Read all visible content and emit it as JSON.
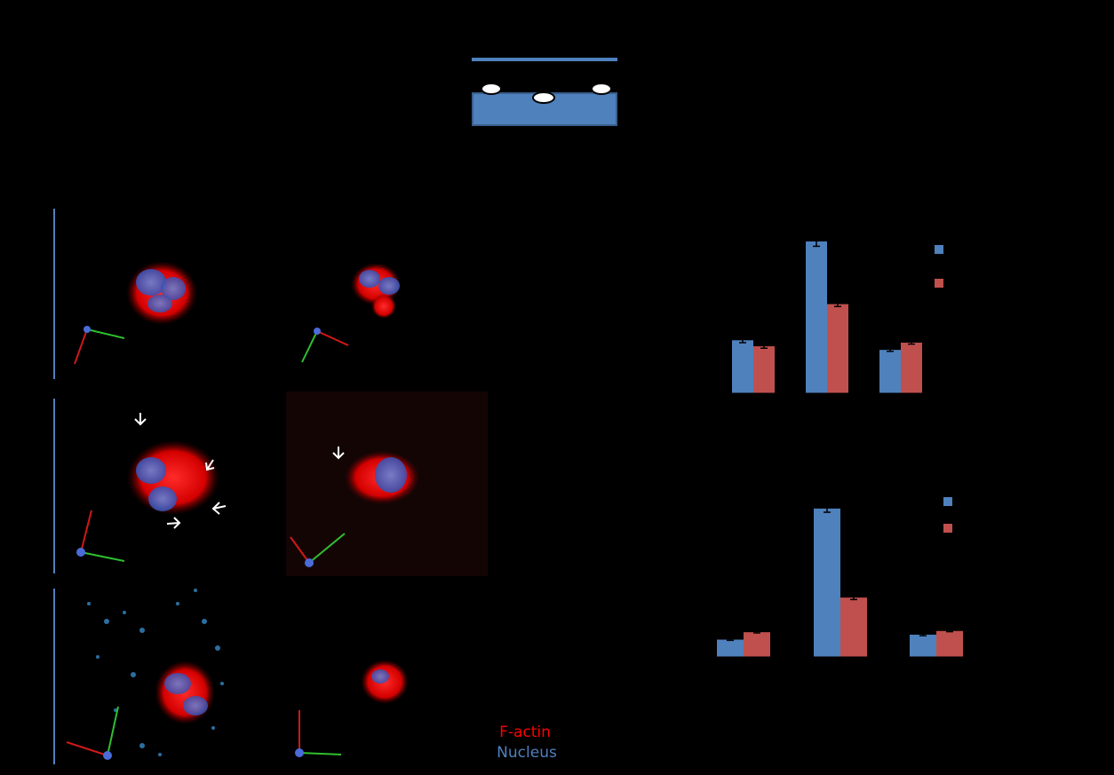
{
  "legend": {
    "factin_label": "F-actin",
    "nucleus_label": "Nucleus",
    "factin_color": "#ff0000",
    "nucleus_color": "#4f81bd"
  },
  "colors": {
    "series_a": "#4f81bd",
    "series_b": "#c0504d",
    "axis": "#000000",
    "panel_bar": "#4f81bd"
  },
  "chart_data": [
    {
      "type": "bar",
      "categories": [
        "",
        "",
        ""
      ],
      "series": [
        {
          "values": [
            2.2,
            6.3,
            1.8
          ],
          "errors": [
            0.1,
            0.2,
            0.06
          ]
        },
        {
          "values": [
            1.95,
            3.7,
            2.1
          ],
          "errors": [
            0.08,
            0.1,
            0.06
          ]
        }
      ],
      "ylim": [
        0,
        7
      ],
      "title": "",
      "xlabel": "",
      "ylabel": ""
    },
    {
      "type": "bar",
      "categories": [
        "",
        "",
        ""
      ],
      "series": [
        {
          "values": [
            0.7,
            6.0,
            0.9
          ],
          "errors": [
            0.03,
            0.15,
            0.04
          ]
        },
        {
          "values": [
            1.0,
            2.4,
            1.05
          ],
          "errors": [
            0.03,
            0.08,
            0.03
          ]
        }
      ],
      "ylim": [
        0,
        7
      ],
      "title": "",
      "xlabel": "",
      "ylabel": ""
    }
  ]
}
